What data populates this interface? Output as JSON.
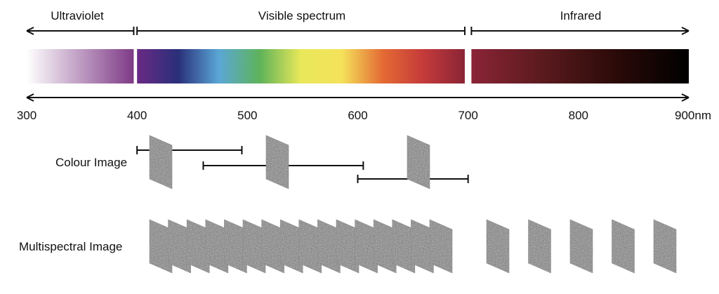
{
  "regions": [
    {
      "label": "Ultraviolet",
      "from": 300,
      "to": 397
    },
    {
      "label": "Visible spectrum",
      "from": 400,
      "to": 697
    },
    {
      "label": "Infrared",
      "from": 703,
      "to": 900
    }
  ],
  "axis": {
    "min": 300,
    "max": 900,
    "ticks": [
      "300",
      "400",
      "500",
      "600",
      "700",
      "800",
      "900nm"
    ]
  },
  "rows": {
    "colour": "Colour Image",
    "multispectral": "Multispectral Image"
  },
  "colour_bands": [
    {
      "from": 400,
      "to": 495
    },
    {
      "from": 460,
      "to": 605
    },
    {
      "from": 600,
      "to": 700
    }
  ],
  "multispectral": {
    "visible_band_count": 16,
    "infrared_band_count": 5
  },
  "colors": {
    "ultraviolet": [
      "#ffffff",
      "#7e3a86"
    ],
    "visible": [
      "#6a2a84",
      "#2a2f7a",
      "#5aa7d6",
      "#5fb35a",
      "#e9e85a",
      "#f4e25a",
      "#e46a34",
      "#c43a3a",
      "#8a2436"
    ],
    "infrared": [
      "#8a2436",
      "#5a1a1e",
      "#2a0a08",
      "#000000"
    ]
  }
}
